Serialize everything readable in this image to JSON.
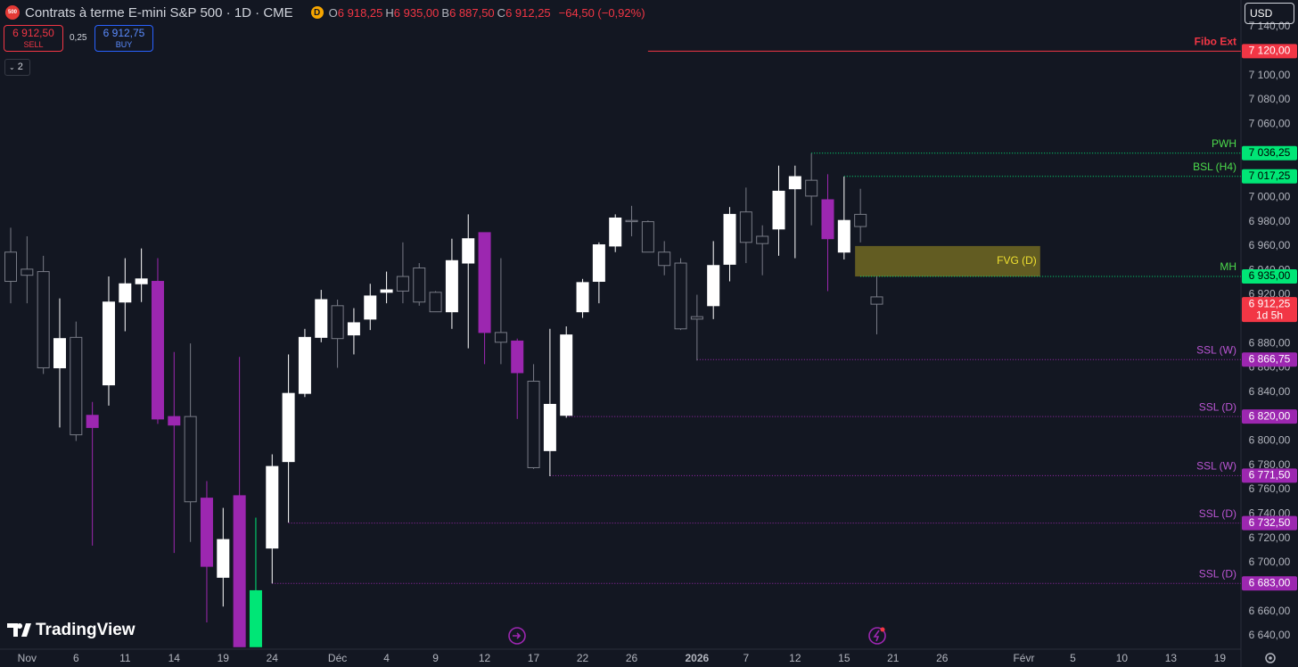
{
  "header": {
    "badge": "500",
    "title": "Contrats à terme E-mini S&P 500 · 1D · CME",
    "flag": "D",
    "ohlc": [
      {
        "key": "O",
        "value": "6 918,25"
      },
      {
        "key": "H",
        "value": "6 935,00"
      },
      {
        "key": "B",
        "value": "6 887,50"
      },
      {
        "key": "C",
        "value": "6 912,25"
      }
    ],
    "change": "−64,50 (−0,92%)"
  },
  "trade": {
    "sell_price": "6 912,50",
    "sell": "SELL",
    "spread": "0,25",
    "buy_price": "6 912,75",
    "buy": "BUY"
  },
  "indicators_count": "2",
  "currency": "USD",
  "brand": "TradingView",
  "chart_data": {
    "type": "candlestick",
    "categories": [
      null,
      "Nov",
      null,
      null,
      "6",
      null,
      null,
      "11",
      null,
      null,
      "14",
      null,
      null,
      "19",
      null,
      null,
      "24",
      null,
      null,
      null,
      "Déc",
      null,
      null,
      "4",
      null,
      null,
      "9",
      null,
      null,
      "12",
      null,
      null,
      "17",
      null,
      null,
      "22",
      null,
      null,
      "26",
      null,
      null,
      null,
      "2026",
      null,
      null,
      "7",
      null,
      null,
      "12",
      null,
      null,
      "15",
      null,
      null,
      "21",
      null,
      null,
      "26",
      null,
      null,
      null,
      null,
      "Févr",
      null,
      null,
      "5",
      null,
      null,
      "10",
      null,
      null,
      "13",
      null,
      null,
      "19",
      null
    ],
    "open": [
      6955,
      6941,
      6939,
      6860,
      6885,
      6821,
      6846,
      6914,
      6929,
      6931,
      6820,
      6820,
      6753,
      6688,
      6755,
      6631,
      6712,
      6783,
      6839,
      6885,
      6911,
      6887,
      6900,
      6922,
      6935,
      6942,
      6922,
      6906,
      6946,
      6971,
      6889,
      6882,
      6849,
      6792,
      6821,
      6906,
      6931,
      6960,
      6981,
      6980,
      6955,
      6946,
      6902,
      6911,
      6945,
      6988,
      6968,
      6974,
      7007,
      7014,
      6998,
      6955,
      6986,
      6918.25,
      null,
      null,
      null,
      null,
      null,
      null,
      null,
      null,
      null,
      null,
      null,
      null,
      null,
      null,
      null,
      null,
      null,
      null,
      null,
      null,
      null,
      null
    ],
    "high": [
      6975,
      6968,
      6952,
      6917,
      6898,
      6832,
      6935,
      6950,
      6958,
      6950,
      6873,
      6880,
      6767,
      6745,
      6869,
      6737,
      6789,
      6871,
      6892,
      6924,
      6916,
      6909,
      6929,
      6939,
      6963,
      6946,
      6923,
      6966,
      6986,
      6971,
      6950,
      6884,
      6863,
      6892,
      6894,
      6933,
      6963,
      6986,
      6993,
      6981,
      6964,
      6950,
      6920,
      6964,
      6992,
      7008,
      6977,
      7026,
      7026,
      7036,
      7019,
      7017,
      7007,
      6935,
      null,
      null,
      null,
      null,
      null,
      null,
      null,
      null,
      null,
      null,
      null,
      null,
      null,
      null,
      null,
      null,
      null,
      null,
      null,
      null,
      null,
      null
    ],
    "low": [
      6913,
      6913,
      6855,
      6811,
      6800,
      6714,
      6829,
      6890,
      6914,
      6814,
      6708,
      6717,
      6651,
      6664,
      6631,
      6631,
      6683,
      6733,
      6836,
      6881,
      6860,
      6871,
      6891,
      6913,
      6913,
      6911,
      6906,
      6892,
      6876,
      6863,
      6863,
      6818,
      6777,
      6771,
      6819,
      6901,
      6913,
      6955,
      6968,
      6955,
      6936,
      6891,
      6866,
      6900,
      6931,
      6946,
      6936,
      6952,
      6950,
      6977,
      6923,
      6949,
      6963,
      6887.5,
      null,
      null,
      null,
      null,
      null,
      null,
      null,
      null,
      null,
      null,
      null,
      null,
      null,
      null,
      null,
      null,
      null,
      null,
      null,
      null,
      null,
      null
    ],
    "close": [
      6931,
      6936,
      6860,
      6884,
      6805,
      6811,
      6914,
      6929,
      6933,
      6818,
      6813,
      6750,
      6697,
      6719,
      6631,
      6677,
      6779,
      6839,
      6885,
      6916,
      6884,
      6897,
      6919,
      6924,
      6923,
      6914,
      6906,
      6948,
      6966,
      6889,
      6881,
      6856,
      6778,
      6830,
      6887,
      6930,
      6961,
      6983,
      6980,
      6955,
      6944,
      6892,
      6900,
      6944,
      6986,
      6963,
      6962,
      7005,
      7017,
      7001,
      6966,
      6981,
      6976,
      6912.25,
      null,
      null,
      null,
      null,
      null,
      null,
      null,
      null,
      null,
      null,
      null,
      null,
      null,
      null,
      null,
      null,
      null,
      null,
      null,
      null,
      null,
      null
    ],
    "colors": [
      "#131722",
      "#131722",
      "#131722",
      "#ffffff",
      "#131722",
      "#9c27b0",
      "#ffffff",
      "#ffffff",
      "#ffffff",
      "#9c27b0",
      "#9c27b0",
      "#131722",
      "#9c27b0",
      "#ffffff",
      "#9c27b0",
      "#00e676",
      "#ffffff",
      "#ffffff",
      "#ffffff",
      "#ffffff",
      "#131722",
      "#ffffff",
      "#ffffff",
      "#ffffff",
      "#131722",
      "#131722",
      "#131722",
      "#ffffff",
      "#ffffff",
      "#9c27b0",
      "#131722",
      "#9c27b0",
      "#131722",
      "#ffffff",
      "#ffffff",
      "#ffffff",
      "#ffffff",
      "#ffffff",
      "#131722",
      "#131722",
      "#131722",
      "#131722",
      "#131722",
      "#ffffff",
      "#ffffff",
      "#131722",
      "#131722",
      "#ffffff",
      "#ffffff",
      "#131722",
      "#9c27b0",
      "#ffffff",
      "#131722",
      "#131722",
      null,
      null,
      null,
      null,
      null,
      null,
      null,
      null,
      null,
      null,
      null,
      null,
      null,
      null,
      null,
      null,
      null,
      null,
      null,
      null,
      null,
      null
    ],
    "ylim": [
      6629,
      7162
    ],
    "yticks": [
      {
        "value": 7140,
        "label": "7 140,00"
      },
      {
        "value": 7100,
        "label": "7 100,00"
      },
      {
        "value": 7080,
        "label": "7 080,00"
      },
      {
        "value": 7060,
        "label": "7 060,00"
      },
      {
        "value": 7000,
        "label": "7 000,00"
      },
      {
        "value": 6980,
        "label": "6 980,00"
      },
      {
        "value": 6960,
        "label": "6 960,00"
      },
      {
        "value": 6940,
        "label": "6 940,00"
      },
      {
        "value": 6920,
        "label": "6 920,00"
      },
      {
        "value": 6880,
        "label": "6 880,00"
      },
      {
        "value": 6860,
        "label": "6 860,00"
      },
      {
        "value": 6840,
        "label": "6 840,00"
      },
      {
        "value": 6800,
        "label": "6 800,00"
      },
      {
        "value": 6780,
        "label": "6 780,00"
      },
      {
        "value": 6760,
        "label": "6 760,00"
      },
      {
        "value": 6740,
        "label": "6 740,00"
      },
      {
        "value": 6720,
        "label": "6 720,00"
      },
      {
        "value": 6700,
        "label": "6 700,00"
      },
      {
        "value": 6660,
        "label": "6 660,00"
      },
      {
        "value": 6640,
        "label": "6 640,00"
      }
    ],
    "levels": [
      {
        "name": "Fibo Ext",
        "value": 7120,
        "label": "7 120,00",
        "from": 39,
        "color": "#f23645",
        "style": "solid"
      },
      {
        "name": "PWH",
        "value": 7036.25,
        "label": "7 036,25",
        "from": 49,
        "color": "#00e676",
        "style": "dotted"
      },
      {
        "name": "BSL (H4)",
        "value": 7017.25,
        "label": "7 017,25",
        "from": 51,
        "color": "#00e676",
        "style": "dotted"
      },
      {
        "name": "MH",
        "value": 6935,
        "label": "6 935,00",
        "from": 52,
        "color": "#00e676",
        "style": "dotted"
      },
      {
        "name": "SSL (W)",
        "value": 6866.75,
        "label": "6 866,75",
        "from": 42,
        "color": "#9c27b0",
        "style": "dotted"
      },
      {
        "name": "SSL (D)",
        "value": 6820,
        "label": "6 820,00",
        "from": 34,
        "color": "#9c27b0",
        "style": "dotted"
      },
      {
        "name": "SSL (W)",
        "value": 6771.5,
        "label": "6 771,50",
        "from": 33,
        "color": "#9c27b0",
        "style": "dotted"
      },
      {
        "name": "SSL (D)",
        "value": 6732.5,
        "label": "6 732,50",
        "from": 17,
        "color": "#9c27b0",
        "style": "dotted"
      },
      {
        "name": "SSL (D)",
        "value": 6683,
        "label": "6 683,00",
        "from": 16,
        "color": "#9c27b0",
        "style": "dotted"
      }
    ],
    "fvg": {
      "label": "FVG (D)",
      "top": 6960,
      "bottom": 6935,
      "from": 52,
      "to": 63,
      "color": "#6b6422"
    },
    "last_price": {
      "value": 6912.25,
      "label": "6 912,25",
      "countdown": "1d 5h",
      "color": "#f23645"
    }
  }
}
